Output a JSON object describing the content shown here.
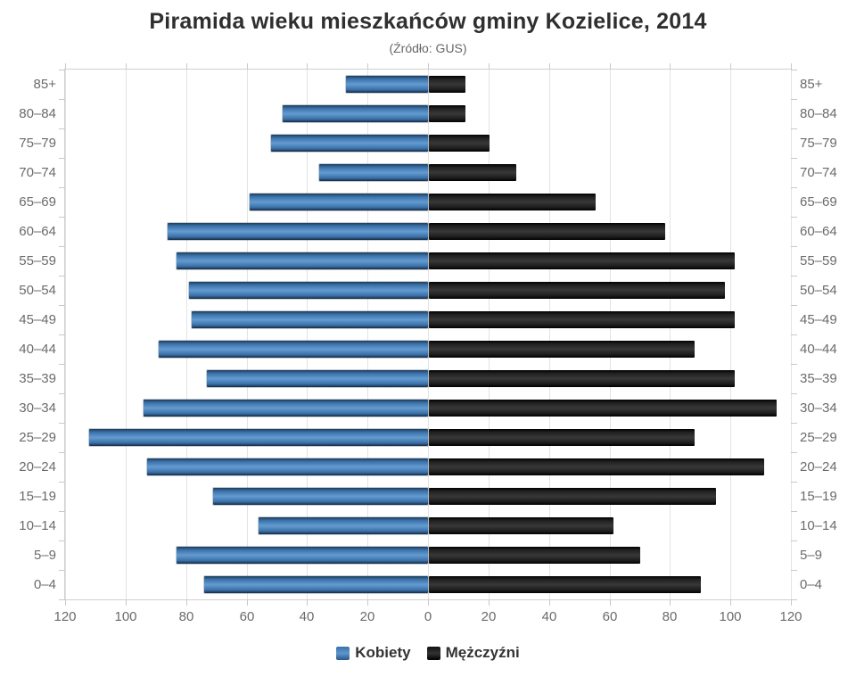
{
  "title": "Piramida wieku mieszkańców gminy Kozielice, 2014",
  "subtitle": "(Źródło: GUS)",
  "x_axis_tick_labels": [
    "120",
    "100",
    "80",
    "60",
    "40",
    "20",
    "0",
    "20",
    "40",
    "60",
    "80",
    "100",
    "120"
  ],
  "colors": {
    "female_bar": "#4a84c2",
    "male_bar": "#1c1c1c",
    "gridline": "#e3e3e3",
    "axis_text": "#6b6b6b",
    "title_text": "#2f2f2f"
  },
  "chart_data": {
    "type": "bar",
    "subtype": "population-pyramid",
    "title": "Piramida wieku mieszkańców gminy Kozielice, 2014",
    "subtitle": "(Źródło: GUS)",
    "categories": [
      "85+",
      "80–84",
      "75–79",
      "70–74",
      "65–69",
      "60–64",
      "55–59",
      "50–54",
      "45–49",
      "40–44",
      "35–39",
      "30–34",
      "25–29",
      "20–24",
      "15–19",
      "10–14",
      "5–9",
      "0–4"
    ],
    "series": [
      {
        "name": "Kobiety",
        "side": "left",
        "color": "#4a84c2",
        "values": [
          27,
          48,
          52,
          36,
          59,
          86,
          83,
          79,
          78,
          89,
          73,
          94,
          112,
          93,
          71,
          56,
          83,
          74
        ]
      },
      {
        "name": "Mężczyźni",
        "side": "right",
        "color": "#1c1c1c",
        "values": [
          12,
          12,
          20,
          29,
          55,
          78,
          101,
          98,
          101,
          88,
          101,
          115,
          88,
          111,
          95,
          61,
          70,
          90
        ]
      }
    ],
    "xlabel": "",
    "ylabel": "",
    "x_range_each_side": [
      0,
      120
    ],
    "tick_step": 20,
    "grid": true,
    "legend_position": "bottom"
  }
}
